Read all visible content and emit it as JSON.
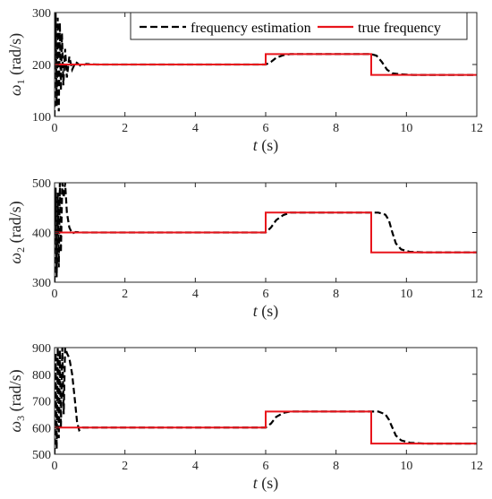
{
  "legend": {
    "entries": [
      {
        "label": "frequency estimation",
        "color": "#000000",
        "style": "dashed"
      },
      {
        "label": "true frequency",
        "color": "#e8141b",
        "style": "solid"
      }
    ],
    "placement": "top-right"
  },
  "chart_data": [
    {
      "type": "line",
      "xlabel": "t",
      "xunit": "(s)",
      "ylabel_symbol": "ω",
      "ylabel_sub": "1",
      "ylabel_unit": "(rad/s)",
      "xlim": [
        0,
        12
      ],
      "ylim": [
        100,
        300
      ],
      "xticks": [
        0,
        2,
        4,
        6,
        8,
        10,
        12
      ],
      "yticks": [
        100,
        200,
        300
      ],
      "grid": false,
      "series": [
        {
          "name": "true frequency",
          "color": "#e8141b",
          "points": [
            [
              0,
              200
            ],
            [
              6,
              200
            ],
            [
              6,
              220
            ],
            [
              9,
              220
            ],
            [
              9,
              180
            ],
            [
              12,
              180
            ]
          ]
        },
        {
          "name": "frequency estimation",
          "color": "#000000",
          "points": [
            [
              0,
              100
            ],
            [
              0.03,
              300
            ],
            [
              0.06,
              120
            ],
            [
              0.09,
              290
            ],
            [
              0.12,
              110
            ],
            [
              0.15,
              280
            ],
            [
              0.18,
              150
            ],
            [
              0.21,
              260
            ],
            [
              0.25,
              160
            ],
            [
              0.3,
              230
            ],
            [
              0.35,
              175
            ],
            [
              0.42,
              215
            ],
            [
              0.5,
              190
            ],
            [
              0.6,
              205
            ],
            [
              0.75,
              197
            ],
            [
              0.9,
              201
            ],
            [
              1.2,
              200
            ],
            [
              6.0,
              200
            ],
            [
              6.15,
              205
            ],
            [
              6.3,
              213
            ],
            [
              6.5,
              218
            ],
            [
              6.7,
              220
            ],
            [
              9.0,
              220
            ],
            [
              9.15,
              217
            ],
            [
              9.3,
              205
            ],
            [
              9.45,
              190
            ],
            [
              9.6,
              183
            ],
            [
              9.85,
              181
            ],
            [
              10.2,
              180
            ],
            [
              12,
              180
            ]
          ]
        }
      ]
    },
    {
      "type": "line",
      "xlabel": "t",
      "xunit": "(s)",
      "ylabel_symbol": "ω",
      "ylabel_sub": "2",
      "ylabel_unit": "(rad/s)",
      "xlim": [
        0,
        12
      ],
      "ylim": [
        300,
        500
      ],
      "xticks": [
        0,
        2,
        4,
        6,
        8,
        10,
        12
      ],
      "yticks": [
        300,
        400,
        500
      ],
      "grid": false,
      "series": [
        {
          "name": "true frequency",
          "color": "#e8141b",
          "points": [
            [
              0,
              400
            ],
            [
              6,
              400
            ],
            [
              6,
              440
            ],
            [
              9,
              440
            ],
            [
              9,
              360
            ],
            [
              12,
              360
            ]
          ]
        },
        {
          "name": "frequency estimation",
          "color": "#000000",
          "points": [
            [
              0,
              300
            ],
            [
              0.03,
              490
            ],
            [
              0.06,
              310
            ],
            [
              0.09,
              480
            ],
            [
              0.12,
              330
            ],
            [
              0.15,
              500
            ],
            [
              0.18,
              360
            ],
            [
              0.22,
              500
            ],
            [
              0.26,
              470
            ],
            [
              0.3,
              500
            ],
            [
              0.35,
              440
            ],
            [
              0.42,
              410
            ],
            [
              0.5,
              398
            ],
            [
              0.6,
              401
            ],
            [
              0.8,
              400
            ],
            [
              6.0,
              400
            ],
            [
              6.15,
              410
            ],
            [
              6.3,
              425
            ],
            [
              6.5,
              435
            ],
            [
              6.7,
              440
            ],
            [
              9.0,
              440
            ],
            [
              9.2,
              440
            ],
            [
              9.4,
              436
            ],
            [
              9.5,
              425
            ],
            [
              9.6,
              400
            ],
            [
              9.7,
              378
            ],
            [
              9.85,
              366
            ],
            [
              10.1,
              361
            ],
            [
              10.5,
              360
            ],
            [
              12,
              360
            ]
          ]
        }
      ]
    },
    {
      "type": "line",
      "xlabel": "t",
      "xunit": "(s)",
      "ylabel_symbol": "ω",
      "ylabel_sub": "3",
      "ylabel_unit": "(rad/s)",
      "xlim": [
        0,
        12
      ],
      "ylim": [
        500,
        900
      ],
      "xticks": [
        0,
        2,
        4,
        6,
        8,
        10,
        12
      ],
      "yticks": [
        500,
        600,
        700,
        800,
        900
      ],
      "grid": false,
      "series": [
        {
          "name": "true frequency",
          "color": "#e8141b",
          "points": [
            [
              0,
              600
            ],
            [
              6,
              600
            ],
            [
              6,
              660
            ],
            [
              9,
              660
            ],
            [
              9,
              540
            ],
            [
              12,
              540
            ]
          ]
        },
        {
          "name": "frequency estimation",
          "color": "#000000",
          "points": [
            [
              0,
              500
            ],
            [
              0.03,
              880
            ],
            [
              0.06,
              520
            ],
            [
              0.09,
              900
            ],
            [
              0.12,
              560
            ],
            [
              0.15,
              890
            ],
            [
              0.18,
              600
            ],
            [
              0.22,
              900
            ],
            [
              0.26,
              650
            ],
            [
              0.3,
              900
            ],
            [
              0.35,
              880
            ],
            [
              0.42,
              860
            ],
            [
              0.5,
              800
            ],
            [
              0.58,
              700
            ],
            [
              0.64,
              620
            ],
            [
              0.7,
              590
            ],
            [
              0.8,
              600
            ],
            [
              6.0,
              600
            ],
            [
              6.15,
              615
            ],
            [
              6.3,
              640
            ],
            [
              6.5,
              655
            ],
            [
              6.7,
              660
            ],
            [
              9.0,
              660
            ],
            [
              9.2,
              660
            ],
            [
              9.4,
              650
            ],
            [
              9.5,
              630
            ],
            [
              9.6,
              600
            ],
            [
              9.7,
              570
            ],
            [
              9.85,
              552
            ],
            [
              10.1,
              543
            ],
            [
              10.5,
              540
            ],
            [
              12,
              540
            ]
          ]
        }
      ]
    }
  ]
}
